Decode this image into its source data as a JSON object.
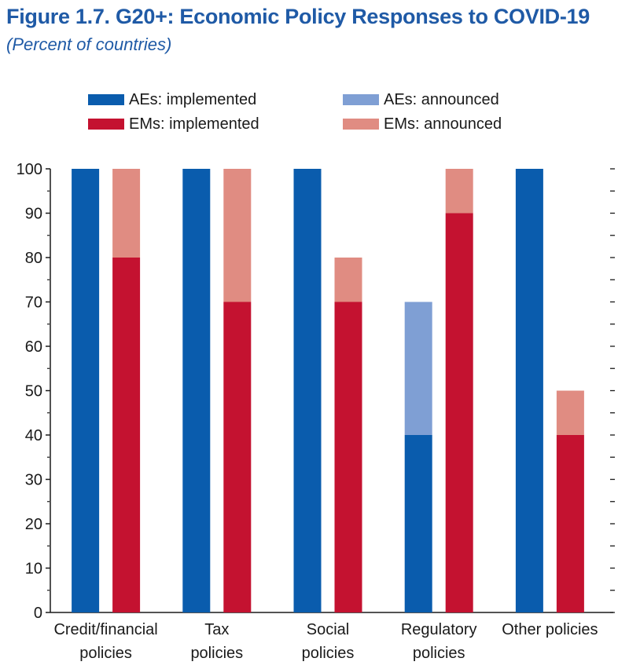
{
  "figure": {
    "title": "Figure 1.7. G20+: Economic Policy Responses to COVID-19",
    "subtitle": "(Percent of countries)"
  },
  "colors": {
    "aes_implemented": "#0a5cad",
    "aes_announced": "#7f9fd4",
    "ems_implemented": "#c41230",
    "ems_announced": "#e08c82",
    "title": "#1f5aa6"
  },
  "chart_data": {
    "type": "bar",
    "stacked": true,
    "title": "Figure 1.7. G20+: Economic Policy Responses to COVID-19",
    "subtitle": "(Percent of countries)",
    "categories": [
      [
        "Credit/financial",
        "policies"
      ],
      [
        "Tax",
        "policies"
      ],
      [
        "Social",
        "policies"
      ],
      [
        "Regulatory",
        "policies"
      ],
      [
        "Other policies"
      ]
    ],
    "groups": [
      {
        "name": "AEs",
        "series": [
          {
            "name": "AEs: implemented",
            "color_key": "aes_implemented",
            "values": [
              100,
              100,
              100,
              40,
              100
            ]
          },
          {
            "name": "AEs: announced",
            "color_key": "aes_announced",
            "values": [
              0,
              0,
              0,
              30,
              0
            ]
          }
        ]
      },
      {
        "name": "EMs",
        "series": [
          {
            "name": "EMs: implemented",
            "color_key": "ems_implemented",
            "values": [
              80,
              70,
              70,
              90,
              40
            ]
          },
          {
            "name": "EMs: announced",
            "color_key": "ems_announced",
            "values": [
              20,
              30,
              10,
              10,
              10
            ]
          }
        ]
      }
    ],
    "legend": [
      {
        "label": "AEs: implemented",
        "color_key": "aes_implemented"
      },
      {
        "label": "AEs: announced",
        "color_key": "aes_announced"
      },
      {
        "label": "EMs: implemented",
        "color_key": "ems_implemented"
      },
      {
        "label": "EMs: announced",
        "color_key": "ems_announced"
      }
    ],
    "legend_position": "top",
    "y_axis": {
      "min": 0,
      "max": 100,
      "major_step": 10,
      "minor_step": 5,
      "tick_labels": [
        "0",
        "10",
        "20",
        "30",
        "40",
        "50",
        "60",
        "70",
        "80",
        "90",
        "100"
      ],
      "right_side_minor_ticks": true
    },
    "grid": false
  }
}
